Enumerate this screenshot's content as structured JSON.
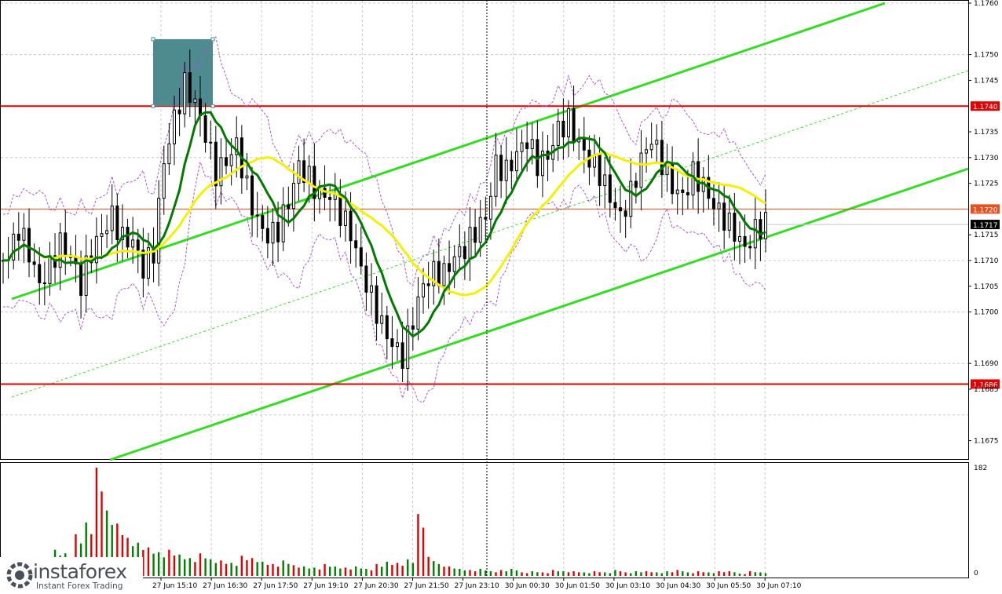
{
  "chart_data": {
    "type": "candlestick",
    "y_axis": {
      "range": [
        1.167,
        1.176
      ],
      "ticks": [
        "1.1760",
        "1.1750",
        "1.1745",
        "1.1735",
        "1.1730",
        "1.1725",
        "1.1715",
        "1.1710",
        "1.1705",
        "1.1700",
        "1.1690",
        "1.1685",
        "1.1675"
      ]
    },
    "x_axis": {
      "labels": [
        "27 Jun 15:10",
        "27 Jun 16:30",
        "27 Jun 17:50",
        "27 Jun 19:10",
        "27 Jun 20:30",
        "27 Jun 21:50",
        "27 Jun 23:10",
        "30 Jun 00:30",
        "30 Jun 01:50",
        "30 Jun 03:10",
        "30 Jun 04:30",
        "30 Jun 05:50",
        "30 Jun 07:10"
      ],
      "partial_first_label": "0"
    },
    "levels": [
      {
        "price": 1.174,
        "label": "1.1740",
        "color": "#e00000"
      },
      {
        "price": 1.172,
        "label": "1.1720",
        "color": "#e85020"
      },
      {
        "price": 1.1686,
        "label": "1.1686",
        "color": "#e00000"
      }
    ],
    "current_price": {
      "value": 1.1717,
      "label": "1.1717"
    },
    "volume_axis": {
      "max_label": "182",
      "min_label": "0"
    },
    "colors": {
      "bull": "#008000",
      "bear": "#e00000",
      "channel": "#33dd22",
      "ma_fast": "#007a00",
      "ma_slow": "#f5f000",
      "bands": "#aa55dd",
      "highlight_box": "#4e8b8f"
    },
    "highlight_box": {
      "price_top": 1.1753,
      "price_bottom": 1.174
    },
    "close_samples": [
      1.171,
      1.1716,
      1.1712,
      1.1706,
      1.1709,
      1.1713,
      1.171,
      1.1705,
      1.1712,
      1.1716,
      1.1719,
      1.1714,
      1.1713,
      1.1708,
      1.1712,
      1.173,
      1.1738,
      1.1744,
      1.174,
      1.1734,
      1.1727,
      1.173,
      1.1733,
      1.1724,
      1.1717,
      1.1714,
      1.1716,
      1.1722,
      1.1729,
      1.1726,
      1.1722,
      1.1722,
      1.1719,
      1.1716,
      1.1709,
      1.1703,
      1.1697,
      1.1693,
      1.1691,
      1.1699,
      1.1706,
      1.1708,
      1.1707,
      1.171,
      1.1712,
      1.1716,
      1.1719,
      1.1729,
      1.1727,
      1.173,
      1.1733,
      1.1729,
      1.1731,
      1.1736,
      1.1737,
      1.1732,
      1.1729,
      1.1727,
      1.1723,
      1.1719,
      1.1723,
      1.1729,
      1.1733,
      1.1729,
      1.1725,
      1.1723,
      1.1727,
      1.1724,
      1.172,
      1.1718,
      1.1716,
      1.1713,
      1.1716,
      1.1717
    ],
    "volume_samples": [
      14,
      18,
      26,
      24,
      30,
      44,
      38,
      70,
      90,
      182,
      110,
      88,
      64,
      56,
      48,
      40,
      44,
      36,
      30,
      38,
      28,
      26,
      22,
      34,
      30,
      24,
      20,
      26,
      18,
      16,
      14,
      20,
      16,
      14,
      16,
      12,
      20,
      24,
      22,
      28,
      104,
      32,
      20,
      16,
      12,
      10,
      12,
      8,
      10,
      12,
      6,
      8,
      6,
      10,
      8,
      8,
      6,
      8,
      6,
      10,
      6,
      8,
      8,
      6,
      8,
      10,
      6,
      8,
      6,
      8,
      8,
      4,
      8,
      6
    ]
  },
  "brand": {
    "name": "instaforex",
    "tagline": "Instant Forex Trading"
  }
}
